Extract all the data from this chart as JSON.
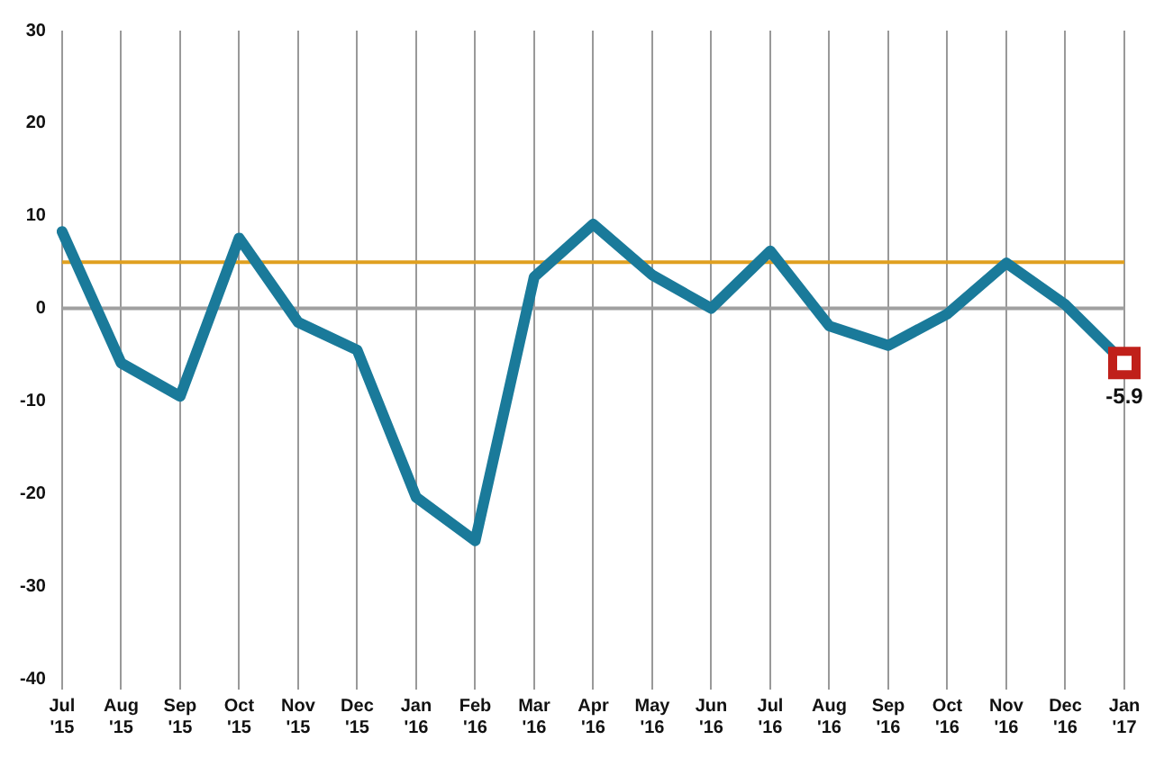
{
  "chart_data": {
    "type": "line",
    "categories": [
      "Jul '15",
      "Aug '15",
      "Sep '15",
      "Oct '15",
      "Nov '15",
      "Dec '15",
      "Jan '16",
      "Feb '16",
      "Mar '16",
      "Apr '16",
      "May '16",
      "Jun '16",
      "Jul '16",
      "Aug '16",
      "Sep '16",
      "Oct '16",
      "Nov '16",
      "Dec '16",
      "Jan '17"
    ],
    "series": [
      {
        "color": "#1a7a9a",
        "values": [
          8.3,
          -5.9,
          -9.5,
          7.6,
          -1.5,
          -4.5,
          -20.4,
          -25.1,
          3.4,
          9.1,
          3.6,
          0,
          6.2,
          -1.9,
          -4,
          -0.6,
          4.9,
          0.4,
          -5.9
        ]
      }
    ],
    "ylim": [
      -40,
      30
    ],
    "yticks": [
      -40,
      -30,
      -20,
      -10,
      0,
      10,
      20,
      30
    ],
    "grid": "x",
    "legend": false,
    "marker": "none",
    "line_style": "solid",
    "ref_lines": [
      {
        "axis": "y",
        "value": 5,
        "color": "#e0a020"
      },
      {
        "axis": "y",
        "value": 0,
        "color": "#a0a0a0"
      }
    ],
    "annotations": [
      {
        "text": "-5.9",
        "x": "Jan '17",
        "y": -5.9
      }
    ]
  }
}
